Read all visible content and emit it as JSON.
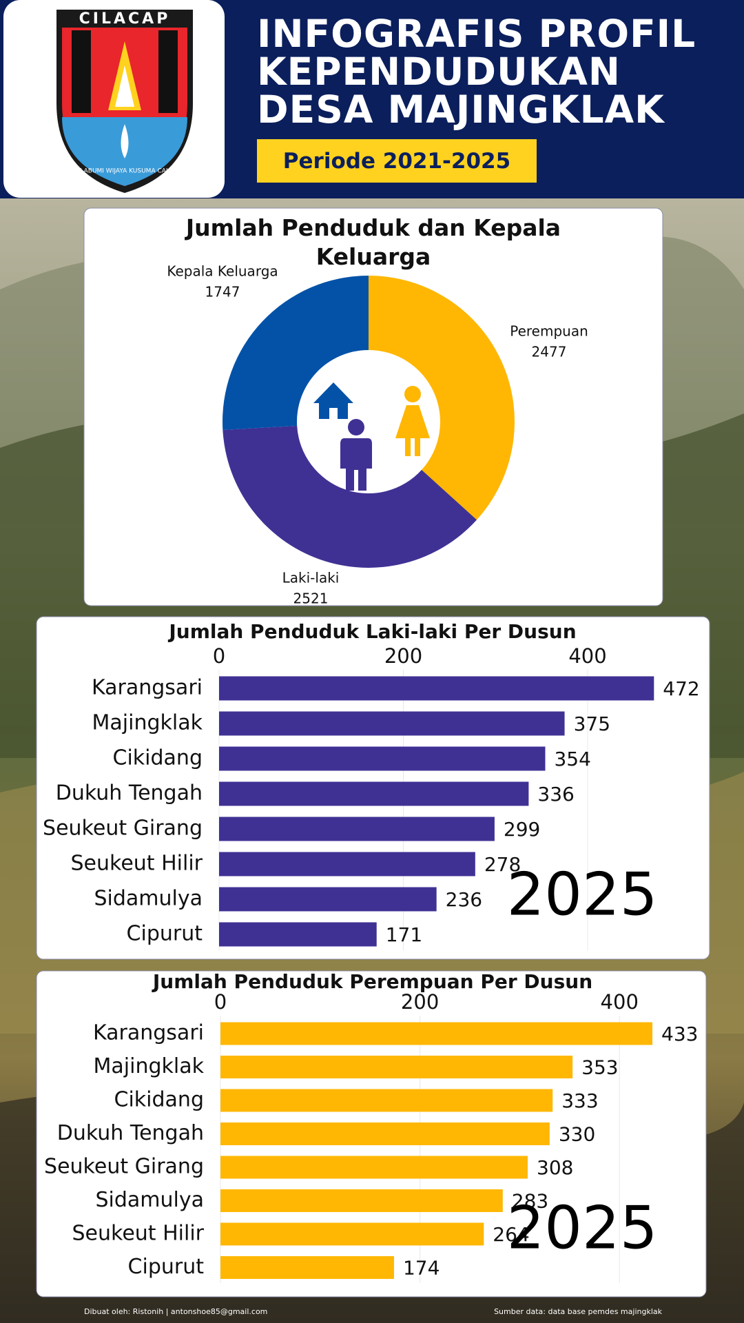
{
  "header": {
    "title_lines": [
      "INFOGRAFIS PROFIL",
      "KEPENDUDUKAN",
      "DESA MAJINGKLAK"
    ],
    "period": "Periode 2021-2025"
  },
  "logo": {
    "name": "CILACAP",
    "motto": "JALABUMI WIJAYA KUSUMA CAKTI"
  },
  "chart_data": [
    {
      "type": "pie",
      "title": "Jumlah Penduduk dan Kepala Keluarga",
      "categories": [
        "Perempuan",
        "Laki-laki",
        "Kepala Keluarga"
      ],
      "values": [
        2477,
        2521,
        1747
      ],
      "colors": [
        "#ffb703",
        "#3f3194",
        "#0352a8"
      ]
    },
    {
      "type": "bar",
      "orientation": "horizontal",
      "title": "Jumlah Penduduk Laki-laki Per Dusun",
      "categories": [
        "Karangsari",
        "Majingklak",
        "Cikidang",
        "Dukuh Tengah",
        "Seukeut Girang",
        "Seukeut Hilir",
        "Sidamulya",
        "Cipurut"
      ],
      "values": [
        472,
        375,
        354,
        336,
        299,
        278,
        236,
        171
      ],
      "color": "#3f3194",
      "xlim": [
        0,
        480
      ],
      "xticks": [
        0,
        200,
        400
      ],
      "grid": true,
      "annotation": "2025"
    },
    {
      "type": "bar",
      "orientation": "horizontal",
      "title": "Jumlah Penduduk Perempuan Per Dusun",
      "categories": [
        "Karangsari",
        "Majingklak",
        "Cikidang",
        "Dukuh Tengah",
        "Seukeut Girang",
        "Sidamulya",
        "Seukeut Hilir",
        "Cipurut"
      ],
      "values": [
        433,
        353,
        333,
        330,
        308,
        283,
        264,
        174
      ],
      "color": "#ffb703",
      "xlim": [
        0,
        470
      ],
      "xticks": [
        0,
        200,
        400
      ],
      "grid": true,
      "annotation": "2025"
    }
  ],
  "footer": {
    "credit": "Dibuat oleh: Ristonih | antonshoe85@gmail.com",
    "source": "Sumber data: data base pemdes majingklak"
  }
}
